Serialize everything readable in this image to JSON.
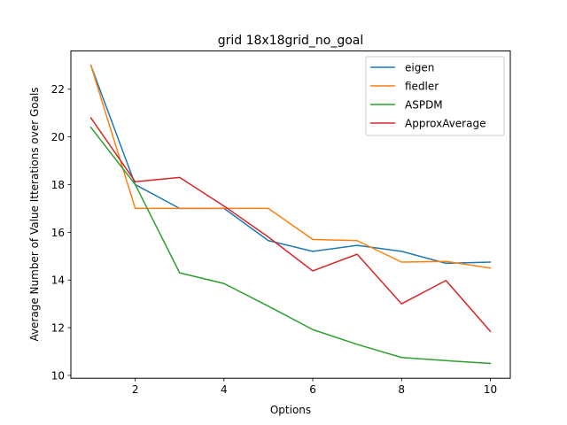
{
  "chart_data": {
    "type": "line",
    "title": "grid  18x18grid_no_goal",
    "xlabel": "Options",
    "ylabel": "Average Number of Value Itterations over Goals",
    "xlim": [
      0.55,
      10.45
    ],
    "ylim": [
      9.88,
      23.6
    ],
    "xticks": [
      2,
      4,
      6,
      8,
      10
    ],
    "yticks": [
      10,
      12,
      14,
      16,
      18,
      20,
      22
    ],
    "grid": false,
    "legend_position": "upper right",
    "x": [
      1,
      2,
      3,
      4,
      5,
      6,
      7,
      8,
      9,
      10
    ],
    "series": [
      {
        "name": "eigen",
        "color": "#1f77b4",
        "values": [
          23.0,
          18.0,
          17.0,
          17.0,
          15.65,
          15.2,
          15.45,
          15.2,
          14.7,
          14.75
        ]
      },
      {
        "name": "fiedler",
        "color": "#ff7f0e",
        "values": [
          23.0,
          17.0,
          17.0,
          17.0,
          17.0,
          15.7,
          15.65,
          14.75,
          14.78,
          14.5
        ]
      },
      {
        "name": "ASPDM",
        "color": "#2ca02c",
        "values": [
          20.4,
          18.0,
          14.3,
          13.85,
          12.9,
          11.92,
          11.3,
          10.75,
          10.62,
          10.5
        ]
      },
      {
        "name": "ApproxAverage",
        "color": "#d62728",
        "values": [
          20.8,
          18.12,
          18.3,
          17.1,
          15.8,
          14.38,
          15.08,
          13.0,
          13.98,
          11.85
        ]
      }
    ]
  }
}
